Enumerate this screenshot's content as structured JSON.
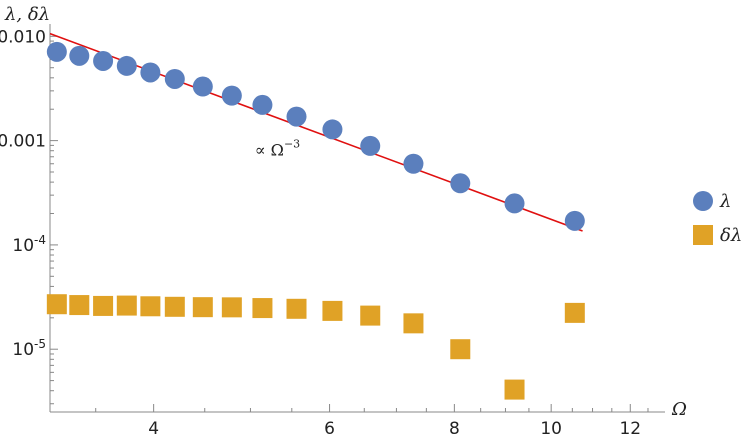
{
  "chart_data": {
    "type": "scatter",
    "xlabel": "Ω",
    "ylabel": "λ, δλ",
    "xscale": "log",
    "yscale": "log",
    "xlim": [
      3.15,
      13.0
    ],
    "ylim": [
      2.5e-06,
      0.011
    ],
    "x_ticks": [
      {
        "value": 4,
        "label": "4"
      },
      {
        "value": 6,
        "label": "6"
      },
      {
        "value": 8,
        "label": "8"
      },
      {
        "value": 10,
        "label": "10"
      },
      {
        "value": 12,
        "label": "12"
      }
    ],
    "y_ticks": [
      {
        "value": 0.01,
        "label": "0.010",
        "base": "",
        "exp": ""
      },
      {
        "value": 0.001,
        "label": "0.001",
        "base": "",
        "exp": ""
      },
      {
        "value": 0.0001,
        "label": "",
        "base": "10",
        "exp": "-4"
      },
      {
        "value": 1e-05,
        "label": "",
        "base": "10",
        "exp": "-5"
      }
    ],
    "series": [
      {
        "name": "λ",
        "marker": "circle",
        "color": "#5b7fbd",
        "points": [
          [
            3.2,
            0.0071
          ],
          [
            3.37,
            0.0065
          ],
          [
            3.56,
            0.0058
          ],
          [
            3.76,
            0.0052
          ],
          [
            3.97,
            0.0045
          ],
          [
            4.2,
            0.0039
          ],
          [
            4.48,
            0.0033
          ],
          [
            4.79,
            0.0027
          ],
          [
            5.14,
            0.0022
          ],
          [
            5.56,
            0.0017
          ],
          [
            6.04,
            0.00128
          ],
          [
            6.59,
            0.00089
          ],
          [
            7.28,
            0.0006
          ],
          [
            8.11,
            0.00039
          ],
          [
            9.19,
            0.00025
          ],
          [
            10.56,
            0.00017
          ]
        ]
      },
      {
        "name": "δλ",
        "marker": "square",
        "color": "#e0a226",
        "points": [
          [
            3.2,
            2.7e-05
          ],
          [
            3.37,
            2.65e-05
          ],
          [
            3.56,
            2.6e-05
          ],
          [
            3.76,
            2.62e-05
          ],
          [
            3.97,
            2.58e-05
          ],
          [
            4.2,
            2.55e-05
          ],
          [
            4.48,
            2.53e-05
          ],
          [
            4.79,
            2.52e-05
          ],
          [
            5.14,
            2.48e-05
          ],
          [
            5.56,
            2.44e-05
          ],
          [
            6.04,
            2.33e-05
          ],
          [
            6.59,
            2.1e-05
          ],
          [
            7.28,
            1.77e-05
          ],
          [
            8.11,
            1e-05
          ],
          [
            9.19,
            4.1e-06
          ],
          [
            10.56,
            2.23e-05
          ]
        ]
      }
    ],
    "fit_line": {
      "color": "#e01010",
      "from": [
        3.15,
        0.0106
      ],
      "to": [
        10.75,
        0.000136
      ],
      "annotation": {
        "prefix": "∝ Ω",
        "exp": "−3",
        "x": 5.05,
        "y": 0.00072
      }
    },
    "legend": {
      "placement": "right"
    }
  }
}
